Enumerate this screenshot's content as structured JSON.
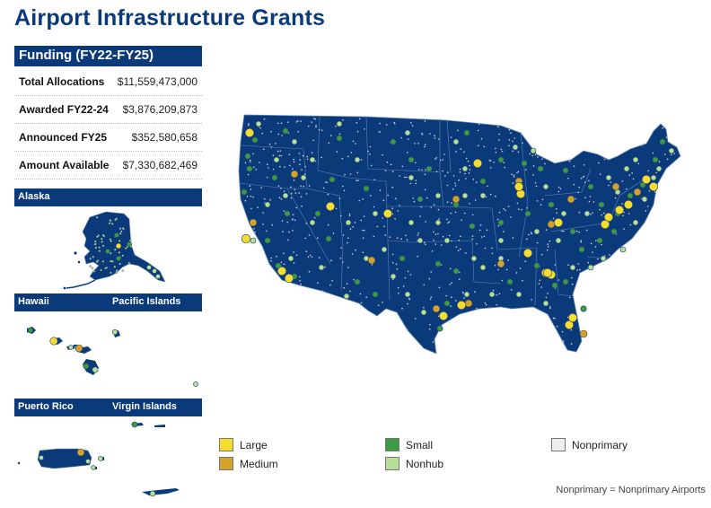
{
  "title": "Airport Infrastructure Grants",
  "funding": {
    "header": "Funding (FY22-FY25)",
    "rows": [
      {
        "label": "Total Allocations",
        "value": "$11,559,473,000"
      },
      {
        "label": "Awarded FY22-24",
        "value": "$3,876,209,873"
      },
      {
        "label": "Announced FY25",
        "value": "$352,580,658"
      },
      {
        "label": "Amount Available",
        "value": "$7,330,682,469"
      }
    ]
  },
  "insets": {
    "alaska": "Alaska",
    "hawaii": "Hawaii",
    "pacific": "Pacific Islands",
    "puerto_rico": "Puerto Rico",
    "virgin_islands": "Virgin Islands"
  },
  "legend": [
    {
      "label": "Large",
      "color": "#f5dc32"
    },
    {
      "label": "Medium",
      "color": "#d4a22a"
    },
    {
      "label": "Small",
      "color": "#3c9a44"
    },
    {
      "label": "Nonhub",
      "color": "#b6df98"
    },
    {
      "label": "Nonprimary",
      "color": "#eeeeee"
    }
  ],
  "footnote": "Nonprimary = Nonprimary Airports",
  "colors": {
    "land": "#0b3a7a",
    "border": "#6f8fbf",
    "large": "#f5dc32",
    "medium": "#d4a22a",
    "small": "#3c9a44",
    "nonhub": "#b6df98"
  }
}
